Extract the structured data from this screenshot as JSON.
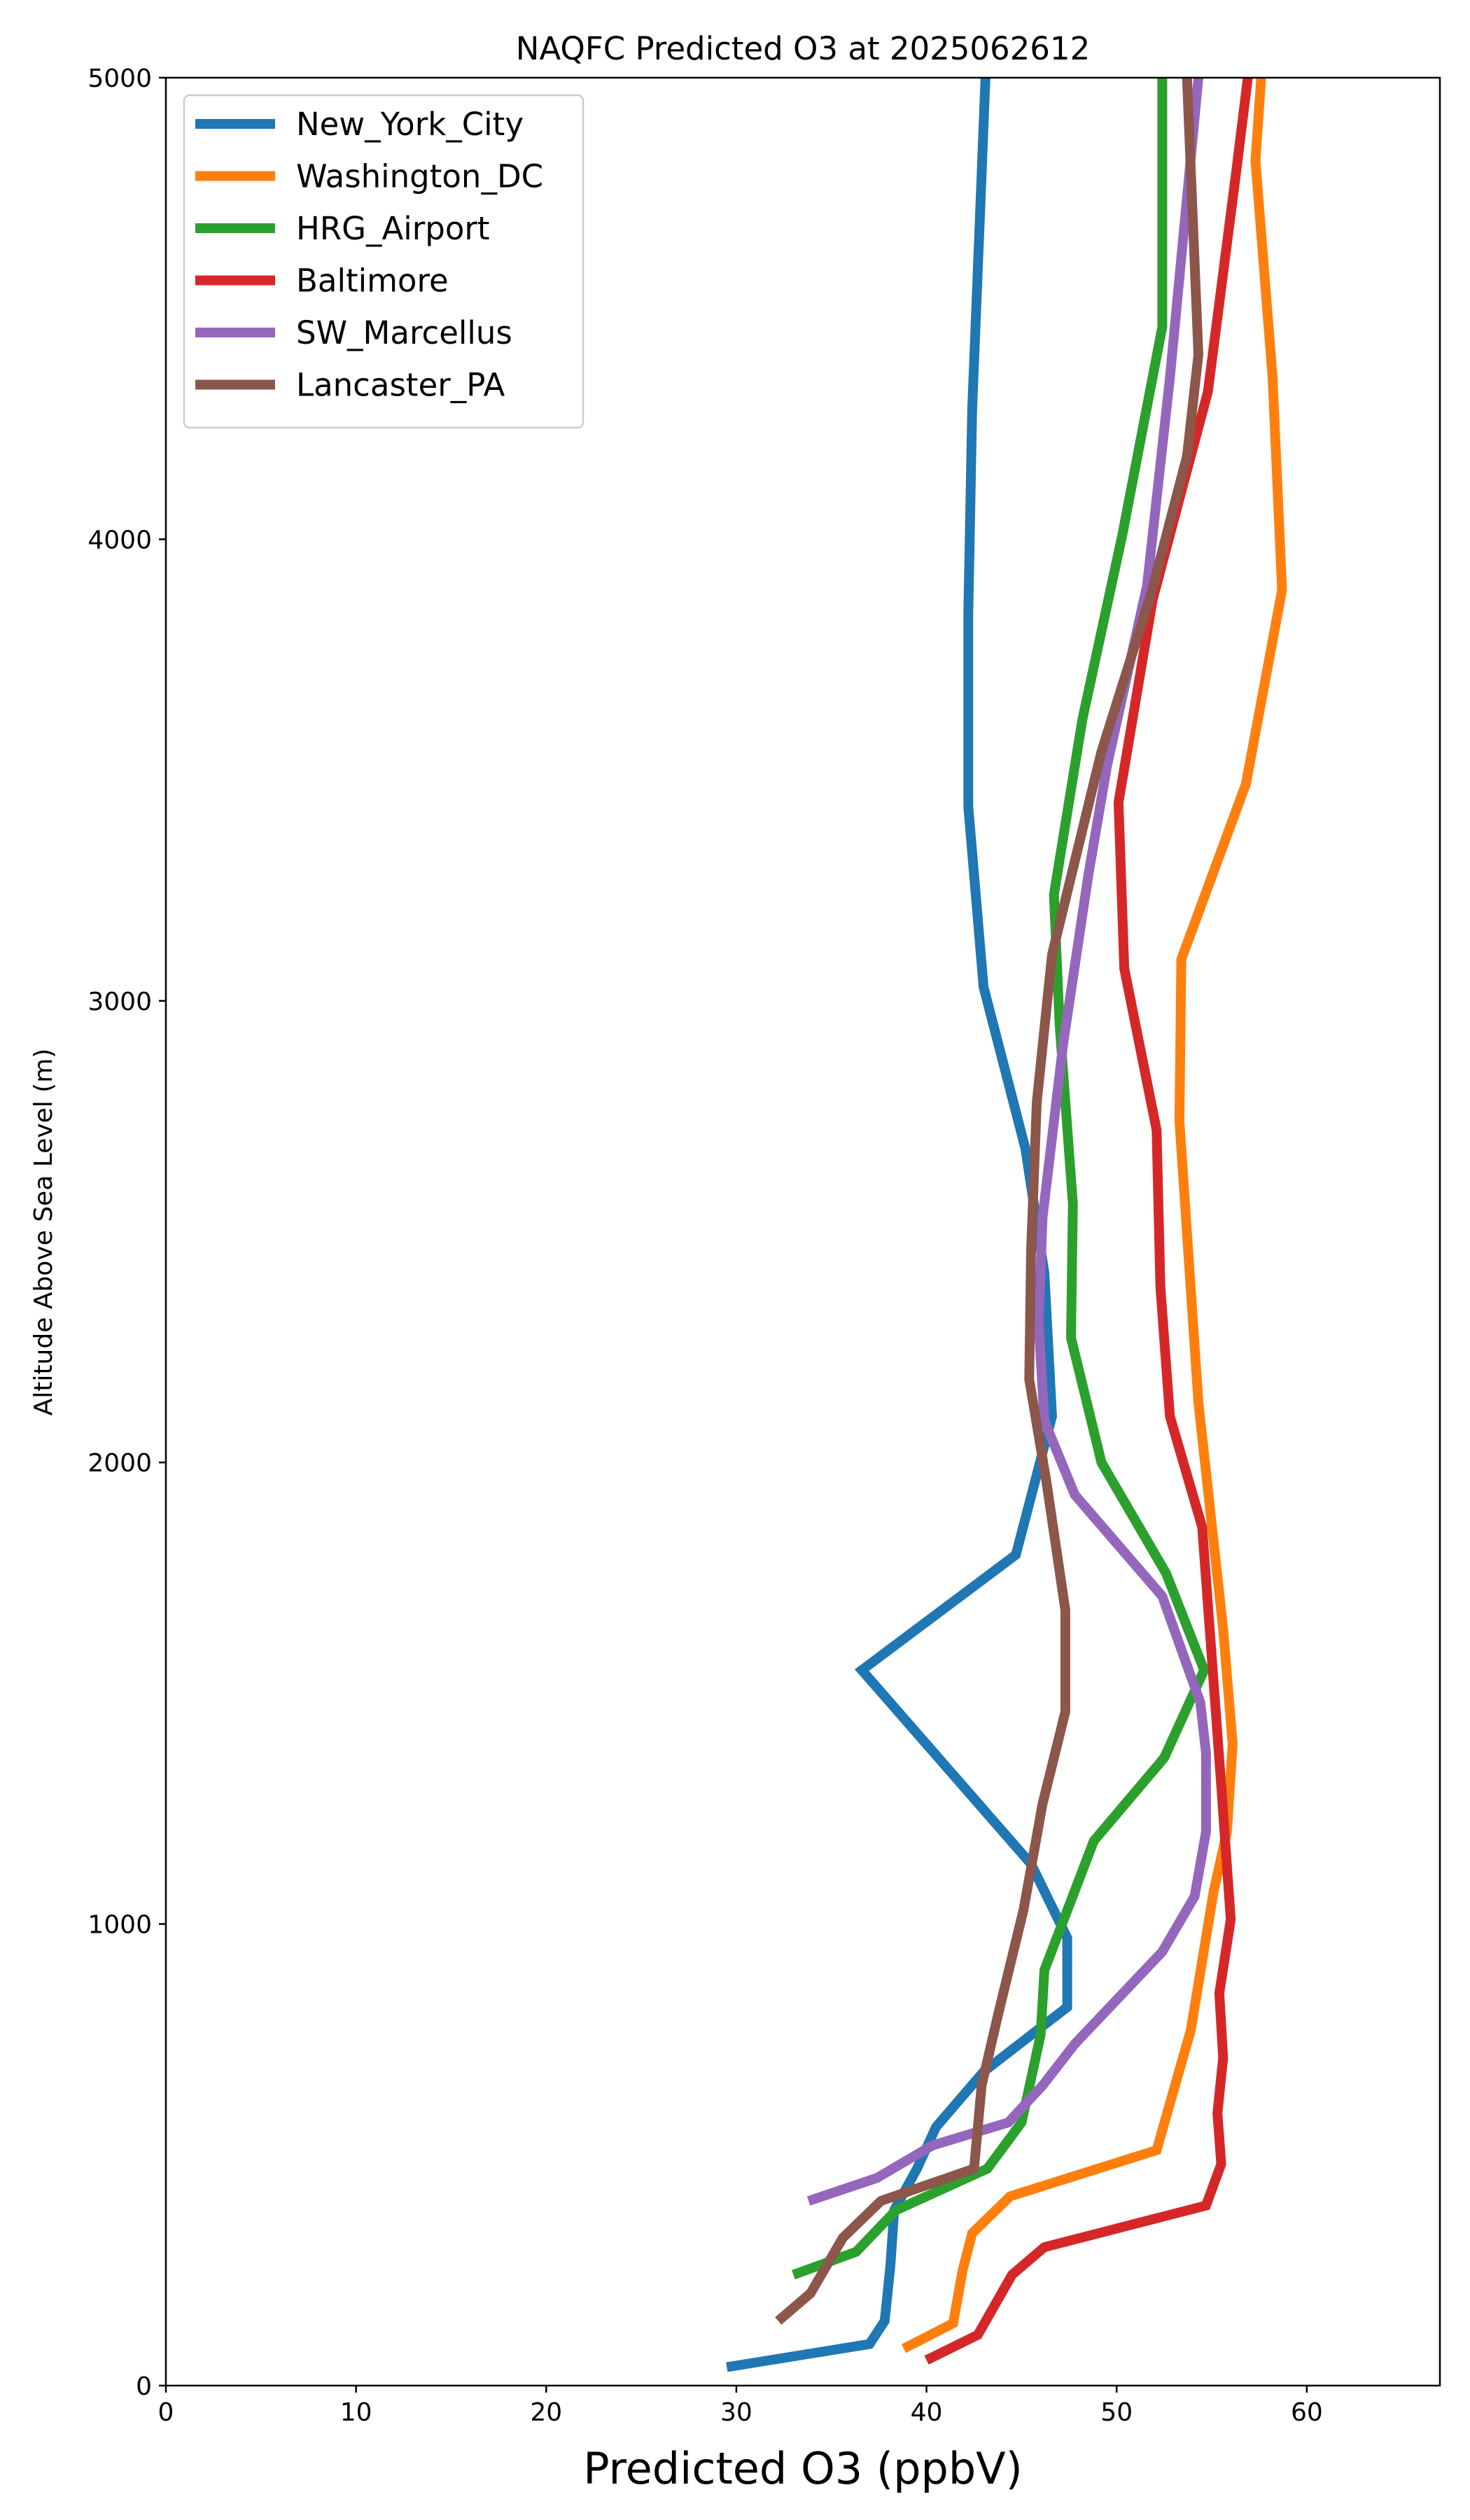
{
  "chart_data": {
    "type": "line",
    "title": "NAQFC Predicted O3 at 2025062612",
    "xlabel": "Predicted O3 (ppbV)",
    "ylabel": "Altitude Above Sea Level (m)",
    "xlim": [
      0,
      67
    ],
    "ylim": [
      0,
      5000
    ],
    "xticks": [
      0,
      10,
      20,
      30,
      40,
      50,
      60
    ],
    "yticks": [
      0,
      1000,
      2000,
      3000,
      4000,
      5000
    ],
    "grid": false,
    "legend_position": "upper-left",
    "series": [
      {
        "name": "New_York_City",
        "color": "#1f77b4",
        "points": [
          [
            29.5,
            40
          ],
          [
            37,
            90
          ],
          [
            37.8,
            140
          ],
          [
            38.1,
            260
          ],
          [
            38.3,
            380
          ],
          [
            39.5,
            470
          ],
          [
            40.5,
            560
          ],
          [
            43,
            680
          ],
          [
            47.4,
            820
          ],
          [
            47.4,
            970
          ],
          [
            45.5,
            1130
          ],
          [
            36.6,
            1550
          ],
          [
            44.7,
            1800
          ],
          [
            46.6,
            2100
          ],
          [
            46.2,
            2410
          ],
          [
            45.2,
            2680
          ],
          [
            43,
            3030
          ],
          [
            42.2,
            3420
          ],
          [
            42.2,
            3840
          ],
          [
            42.4,
            4280
          ],
          [
            42.9,
            4790
          ],
          [
            43.1,
            5000
          ]
        ]
      },
      {
        "name": "Washington_DC",
        "color": "#ff7f0e",
        "points": [
          [
            38.8,
            80
          ],
          [
            41.4,
            135
          ],
          [
            41.9,
            250
          ],
          [
            42.4,
            330
          ],
          [
            44.4,
            410
          ],
          [
            52.1,
            510
          ],
          [
            53.9,
            770
          ],
          [
            55.1,
            1070
          ],
          [
            55.8,
            1200
          ],
          [
            56.1,
            1390
          ],
          [
            55.6,
            1640
          ],
          [
            54.3,
            2130
          ],
          [
            53.3,
            2740
          ],
          [
            53.4,
            3090
          ],
          [
            56.8,
            3470
          ],
          [
            58.7,
            3890
          ],
          [
            58.2,
            4350
          ],
          [
            57.3,
            4820
          ],
          [
            57.6,
            5000
          ]
        ]
      },
      {
        "name": "HRG_Airport",
        "color": "#2ca02c",
        "points": [
          [
            33,
            240
          ],
          [
            36.3,
            290
          ],
          [
            38.4,
            380
          ],
          [
            43.2,
            470
          ],
          [
            45,
            570
          ],
          [
            46,
            760
          ],
          [
            46.2,
            900
          ],
          [
            47.5,
            1040
          ],
          [
            48.8,
            1180
          ],
          [
            52.5,
            1360
          ],
          [
            54.6,
            1550
          ],
          [
            52.6,
            1760
          ],
          [
            49.2,
            2000
          ],
          [
            47.6,
            2270
          ],
          [
            47.7,
            2560
          ],
          [
            47,
            2950
          ],
          [
            46.7,
            3230
          ],
          [
            48.2,
            3610
          ],
          [
            50.3,
            4010
          ],
          [
            52.4,
            4460
          ],
          [
            52.4,
            5000
          ]
        ]
      },
      {
        "name": "Baltimore",
        "color": "#d62728",
        "points": [
          [
            40,
            55
          ],
          [
            42.7,
            110
          ],
          [
            44.5,
            240
          ],
          [
            46.2,
            300
          ],
          [
            54.7,
            390
          ],
          [
            55.5,
            480
          ],
          [
            55.3,
            590
          ],
          [
            55.6,
            710
          ],
          [
            55.4,
            850
          ],
          [
            56,
            1010
          ],
          [
            55.5,
            1300
          ],
          [
            54.5,
            1860
          ],
          [
            52.8,
            2100
          ],
          [
            52.3,
            2380
          ],
          [
            52.1,
            2720
          ],
          [
            50.4,
            3070
          ],
          [
            50.1,
            3430
          ],
          [
            51.9,
            3870
          ],
          [
            54.8,
            4320
          ],
          [
            56.3,
            4800
          ],
          [
            56.9,
            5000
          ]
        ]
      },
      {
        "name": "SW_Marcellus",
        "color": "#9467bd",
        "points": [
          [
            33.8,
            400
          ],
          [
            37.4,
            450
          ],
          [
            40.3,
            520
          ],
          [
            44.3,
            570
          ],
          [
            46.1,
            650
          ],
          [
            47.8,
            740
          ],
          [
            52.4,
            940
          ],
          [
            54.1,
            1060
          ],
          [
            54.7,
            1200
          ],
          [
            54.7,
            1370
          ],
          [
            54.4,
            1480
          ],
          [
            52.4,
            1710
          ],
          [
            47.8,
            1930
          ],
          [
            46.2,
            2090
          ],
          [
            45.9,
            2300
          ],
          [
            46.1,
            2530
          ],
          [
            47.2,
            2910
          ],
          [
            48.5,
            3270
          ],
          [
            49.5,
            3510
          ],
          [
            51.6,
            3900
          ],
          [
            52.8,
            4350
          ],
          [
            54.3,
            5000
          ]
        ]
      },
      {
        "name": "Lancaster_PA",
        "color": "#8c564b",
        "points": [
          [
            32.2,
            140
          ],
          [
            33.9,
            200
          ],
          [
            35.6,
            320
          ],
          [
            37.6,
            400
          ],
          [
            42.5,
            470
          ],
          [
            42.9,
            650
          ],
          [
            43.8,
            810
          ],
          [
            45.1,
            1030
          ],
          [
            46.1,
            1260
          ],
          [
            47.3,
            1460
          ],
          [
            47.3,
            1680
          ],
          [
            46.3,
            1960
          ],
          [
            45.4,
            2180
          ],
          [
            45.5,
            2460
          ],
          [
            45.8,
            2780
          ],
          [
            46.6,
            3100
          ],
          [
            49.2,
            3540
          ],
          [
            51.8,
            3880
          ],
          [
            53.7,
            4180
          ],
          [
            54.3,
            4400
          ],
          [
            53.7,
            5000
          ]
        ]
      }
    ]
  }
}
